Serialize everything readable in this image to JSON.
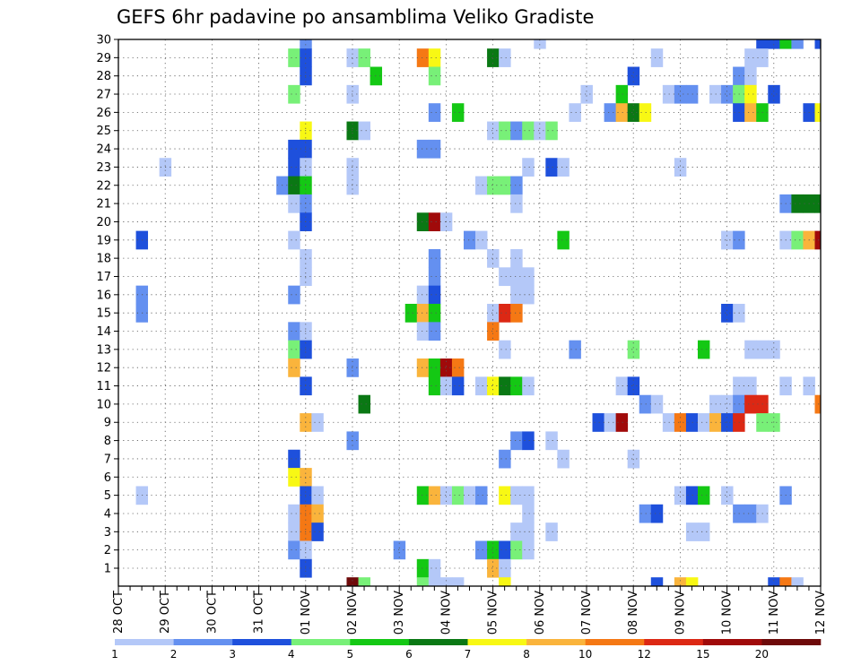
{
  "chart_data": {
    "type": "heatmap",
    "title": "GEFS 6hr padavine po ansamblima Veliko Gradiste",
    "y_ticks": [
      "1",
      "2",
      "3",
      "4",
      "5",
      "6",
      "7",
      "8",
      "9",
      "10",
      "11",
      "12",
      "13",
      "14",
      "15",
      "16",
      "17",
      "18",
      "19",
      "20",
      "21",
      "22",
      "23",
      "24",
      "25",
      "26",
      "27",
      "28",
      "29",
      "30"
    ],
    "x_ticks": [
      "28 OCT",
      "29 OCT",
      "30 OCT",
      "31 OCT",
      "01 NOV",
      "02 NOV",
      "03 NOV",
      "04 NOV",
      "05 NOV",
      "06 NOV",
      "07 NOV",
      "08 NOV",
      "09 NOV",
      "10 NOV",
      "11 NOV",
      "12 NOV"
    ],
    "legend": {
      "labels": [
        "1",
        "2",
        "3",
        "4",
        "5",
        "6",
        "7",
        "8",
        "10",
        "12",
        "15",
        "20"
      ],
      "colors": [
        "#b4c8f8",
        "#6490f0",
        "#1e50dc",
        "#78f078",
        "#14c814",
        "#0a7814",
        "#f8f814",
        "#fab43c",
        "#f57814",
        "#dc2814",
        "#a00a0a",
        "#6e0a0a"
      ]
    },
    "x_range_steps": [
      0,
      60
    ],
    "y_range_members": [
      0,
      30
    ],
    "cells": [
      [
        30,
        16,
        2
      ],
      [
        30,
        36,
        1
      ],
      [
        30,
        55,
        3
      ],
      [
        30,
        56,
        3
      ],
      [
        30,
        57,
        5
      ],
      [
        30,
        58,
        2
      ],
      [
        30,
        60,
        3
      ],
      [
        29,
        15,
        4
      ],
      [
        29,
        16,
        3
      ],
      [
        29,
        20,
        1
      ],
      [
        29,
        21,
        4
      ],
      [
        29,
        26,
        9
      ],
      [
        29,
        27,
        7
      ],
      [
        29,
        32,
        6
      ],
      [
        29,
        33,
        1
      ],
      [
        29,
        46,
        1
      ],
      [
        29,
        54,
        1
      ],
      [
        29,
        55,
        1
      ],
      [
        28,
        16,
        3
      ],
      [
        28,
        22,
        5
      ],
      [
        28,
        27,
        4
      ],
      [
        28,
        44,
        3
      ],
      [
        28,
        53,
        2
      ],
      [
        28,
        54,
        1
      ],
      [
        27,
        15,
        4
      ],
      [
        27,
        20,
        1
      ],
      [
        27,
        40,
        1
      ],
      [
        27,
        43,
        5
      ],
      [
        27,
        47,
        1
      ],
      [
        27,
        48,
        2
      ],
      [
        27,
        49,
        2
      ],
      [
        27,
        51,
        1
      ],
      [
        27,
        52,
        2
      ],
      [
        27,
        53,
        4
      ],
      [
        27,
        54,
        7
      ],
      [
        27,
        56,
        3
      ],
      [
        26,
        27,
        2
      ],
      [
        26,
        29,
        5
      ],
      [
        26,
        39,
        1
      ],
      [
        26,
        42,
        2
      ],
      [
        26,
        43,
        8
      ],
      [
        26,
        44,
        6
      ],
      [
        26,
        45,
        7
      ],
      [
        26,
        53,
        3
      ],
      [
        26,
        54,
        8
      ],
      [
        26,
        55,
        5
      ],
      [
        26,
        59,
        3
      ],
      [
        26,
        60,
        7
      ],
      [
        25,
        16,
        7
      ],
      [
        25,
        20,
        6
      ],
      [
        25,
        21,
        1
      ],
      [
        25,
        32,
        1
      ],
      [
        25,
        33,
        4
      ],
      [
        25,
        34,
        2
      ],
      [
        25,
        35,
        4
      ],
      [
        25,
        36,
        1
      ],
      [
        25,
        37,
        4
      ],
      [
        24,
        15,
        3
      ],
      [
        24,
        16,
        3
      ],
      [
        24,
        26,
        2
      ],
      [
        24,
        27,
        2
      ],
      [
        23,
        4,
        1
      ],
      [
        23,
        15,
        3
      ],
      [
        23,
        16,
        1
      ],
      [
        23,
        20,
        1
      ],
      [
        23,
        35,
        1
      ],
      [
        23,
        37,
        3
      ],
      [
        23,
        38,
        1
      ],
      [
        23,
        48,
        1
      ],
      [
        22,
        14,
        2
      ],
      [
        22,
        15,
        6
      ],
      [
        22,
        16,
        5
      ],
      [
        22,
        20,
        1
      ],
      [
        22,
        31,
        1
      ],
      [
        22,
        32,
        4
      ],
      [
        22,
        33,
        4
      ],
      [
        22,
        34,
        2
      ],
      [
        21,
        15,
        1
      ],
      [
        21,
        16,
        2
      ],
      [
        21,
        34,
        1
      ],
      [
        21,
        57,
        2
      ],
      [
        21,
        58,
        6
      ],
      [
        21,
        59,
        6
      ],
      [
        21,
        60,
        6
      ],
      [
        20,
        16,
        3
      ],
      [
        20,
        26,
        6
      ],
      [
        20,
        27,
        11
      ],
      [
        20,
        28,
        1
      ],
      [
        19,
        2,
        3
      ],
      [
        19,
        15,
        1
      ],
      [
        19,
        30,
        2
      ],
      [
        19,
        31,
        1
      ],
      [
        19,
        38,
        5
      ],
      [
        19,
        52,
        1
      ],
      [
        19,
        53,
        2
      ],
      [
        19,
        57,
        1
      ],
      [
        19,
        58,
        4
      ],
      [
        19,
        59,
        8
      ],
      [
        19,
        60,
        11
      ],
      [
        18,
        16,
        1
      ],
      [
        18,
        27,
        2
      ],
      [
        18,
        32,
        1
      ],
      [
        18,
        34,
        1
      ],
      [
        17,
        16,
        1
      ],
      [
        17,
        27,
        2
      ],
      [
        17,
        33,
        1
      ],
      [
        17,
        34,
        1
      ],
      [
        17,
        35,
        1
      ],
      [
        16,
        2,
        2
      ],
      [
        16,
        15,
        2
      ],
      [
        16,
        26,
        1
      ],
      [
        16,
        27,
        3
      ],
      [
        16,
        34,
        1
      ],
      [
        16,
        35,
        1
      ],
      [
        15,
        2,
        2
      ],
      [
        15,
        25,
        5
      ],
      [
        15,
        26,
        8
      ],
      [
        15,
        27,
        5
      ],
      [
        15,
        32,
        1
      ],
      [
        15,
        33,
        10
      ],
      [
        15,
        34,
        9
      ],
      [
        15,
        52,
        3
      ],
      [
        15,
        53,
        1
      ],
      [
        14,
        15,
        2
      ],
      [
        14,
        16,
        1
      ],
      [
        14,
        26,
        1
      ],
      [
        14,
        27,
        2
      ],
      [
        14,
        32,
        9
      ],
      [
        13,
        15,
        4
      ],
      [
        13,
        16,
        3
      ],
      [
        13,
        33,
        1
      ],
      [
        13,
        39,
        2
      ],
      [
        13,
        44,
        4
      ],
      [
        13,
        50,
        5
      ],
      [
        13,
        54,
        1
      ],
      [
        13,
        55,
        1
      ],
      [
        13,
        56,
        1
      ],
      [
        12,
        15,
        8
      ],
      [
        12,
        20,
        2
      ],
      [
        12,
        26,
        8
      ],
      [
        12,
        27,
        5
      ],
      [
        12,
        28,
        11
      ],
      [
        12,
        29,
        9
      ],
      [
        11,
        16,
        3
      ],
      [
        11,
        27,
        5
      ],
      [
        11,
        28,
        1
      ],
      [
        11,
        29,
        3
      ],
      [
        11,
        31,
        1
      ],
      [
        11,
        32,
        7
      ],
      [
        11,
        33,
        6
      ],
      [
        11,
        34,
        5
      ],
      [
        11,
        35,
        1
      ],
      [
        11,
        43,
        1
      ],
      [
        11,
        44,
        3
      ],
      [
        11,
        53,
        1
      ],
      [
        11,
        54,
        1
      ],
      [
        11,
        57,
        1
      ],
      [
        11,
        59,
        1
      ],
      [
        10,
        21,
        6
      ],
      [
        10,
        45,
        2
      ],
      [
        10,
        46,
        1
      ],
      [
        10,
        51,
        1
      ],
      [
        10,
        52,
        1
      ],
      [
        10,
        53,
        2
      ],
      [
        10,
        54,
        10
      ],
      [
        10,
        55,
        10
      ],
      [
        10,
        60,
        9
      ],
      [
        9,
        16,
        8
      ],
      [
        9,
        17,
        1
      ],
      [
        9,
        41,
        3
      ],
      [
        9,
        42,
        1
      ],
      [
        9,
        43,
        11
      ],
      [
        9,
        47,
        1
      ],
      [
        9,
        48,
        9
      ],
      [
        9,
        49,
        3
      ],
      [
        9,
        50,
        1
      ],
      [
        9,
        51,
        8
      ],
      [
        9,
        52,
        3
      ],
      [
        9,
        53,
        10
      ],
      [
        9,
        55,
        4
      ],
      [
        9,
        56,
        4
      ],
      [
        8,
        20,
        2
      ],
      [
        8,
        34,
        2
      ],
      [
        8,
        35,
        3
      ],
      [
        8,
        37,
        1
      ],
      [
        7,
        15,
        3
      ],
      [
        7,
        33,
        2
      ],
      [
        7,
        38,
        1
      ],
      [
        7,
        44,
        1
      ],
      [
        6,
        15,
        7
      ],
      [
        6,
        16,
        8
      ],
      [
        5,
        2,
        1
      ],
      [
        5,
        16,
        3
      ],
      [
        5,
        17,
        1
      ],
      [
        5,
        26,
        5
      ],
      [
        5,
        27,
        8
      ],
      [
        5,
        28,
        1
      ],
      [
        5,
        29,
        4
      ],
      [
        5,
        30,
        1
      ],
      [
        5,
        31,
        2
      ],
      [
        5,
        33,
        7
      ],
      [
        5,
        34,
        1
      ],
      [
        5,
        35,
        1
      ],
      [
        5,
        48,
        1
      ],
      [
        5,
        49,
        3
      ],
      [
        5,
        50,
        5
      ],
      [
        5,
        52,
        1
      ],
      [
        5,
        57,
        2
      ],
      [
        4,
        15,
        1
      ],
      [
        4,
        16,
        9
      ],
      [
        4,
        17,
        8
      ],
      [
        4,
        35,
        1
      ],
      [
        4,
        45,
        2
      ],
      [
        4,
        46,
        3
      ],
      [
        4,
        53,
        2
      ],
      [
        4,
        54,
        2
      ],
      [
        4,
        55,
        1
      ],
      [
        3,
        15,
        1
      ],
      [
        3,
        16,
        9
      ],
      [
        3,
        17,
        3
      ],
      [
        3,
        34,
        1
      ],
      [
        3,
        35,
        1
      ],
      [
        3,
        37,
        1
      ],
      [
        3,
        49,
        1
      ],
      [
        3,
        50,
        1
      ],
      [
        2,
        15,
        2
      ],
      [
        2,
        16,
        1
      ],
      [
        2,
        24,
        2
      ],
      [
        2,
        31,
        2
      ],
      [
        2,
        32,
        5
      ],
      [
        2,
        33,
        3
      ],
      [
        2,
        34,
        4
      ],
      [
        2,
        35,
        1
      ],
      [
        1,
        16,
        3
      ],
      [
        1,
        26,
        5
      ],
      [
        1,
        27,
        1
      ],
      [
        1,
        32,
        8
      ],
      [
        1,
        33,
        1
      ],
      [
        0,
        20,
        12
      ],
      [
        0,
        21,
        4
      ],
      [
        0,
        26,
        4
      ],
      [
        0,
        27,
        1
      ],
      [
        0,
        28,
        1
      ],
      [
        0,
        29,
        1
      ],
      [
        0,
        33,
        7
      ],
      [
        0,
        46,
        3
      ],
      [
        0,
        48,
        8
      ],
      [
        0,
        49,
        7
      ],
      [
        0,
        56,
        3
      ],
      [
        0,
        57,
        9
      ],
      [
        0,
        58,
        1
      ]
    ]
  }
}
